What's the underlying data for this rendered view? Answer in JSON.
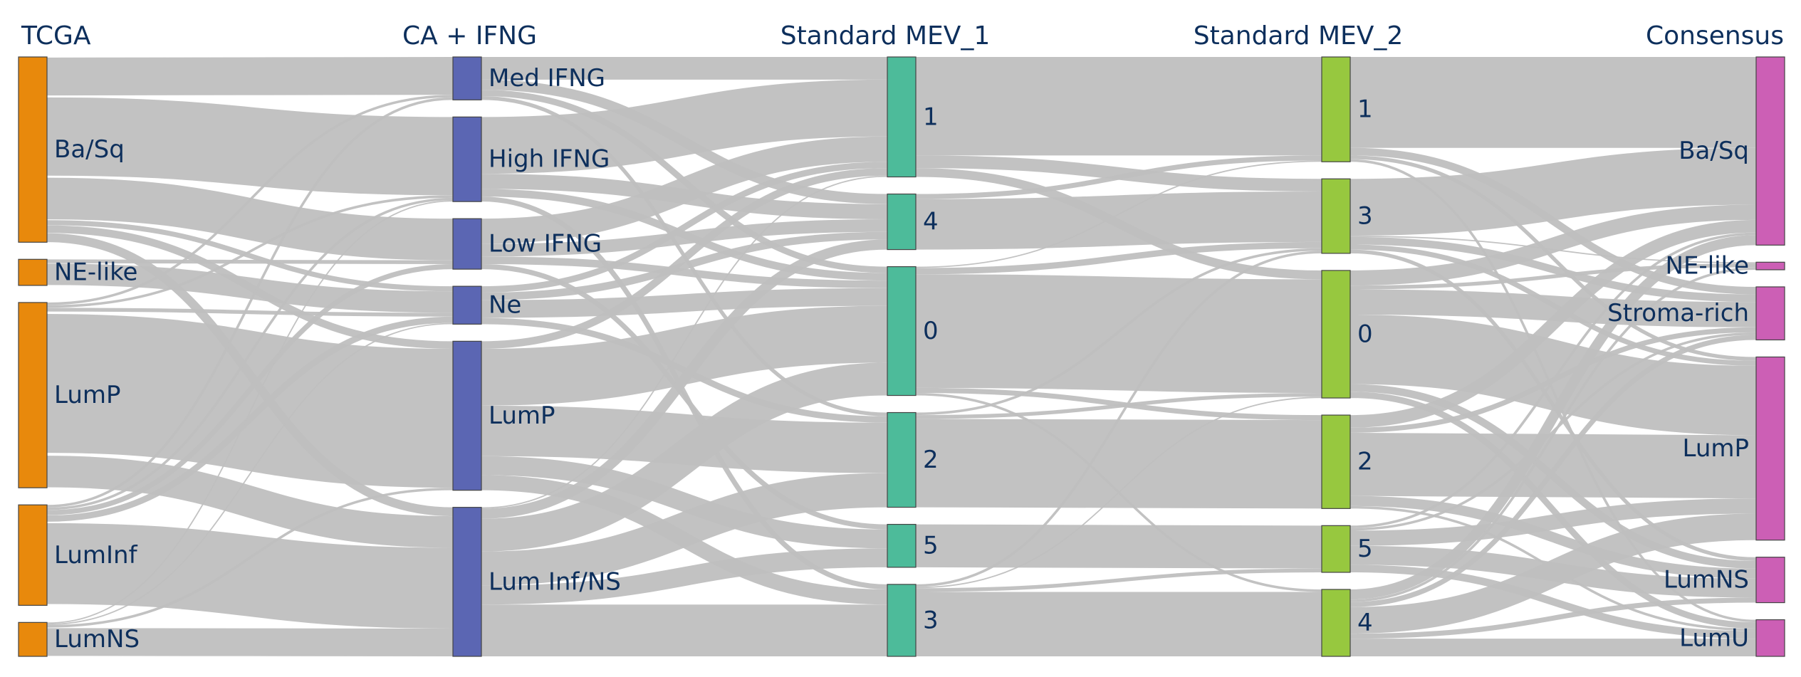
{
  "diagram": {
    "type": "sankey",
    "link_color": "#bfbfbf",
    "columns": [
      {
        "title": "TCGA",
        "color": "#e8890c",
        "nodes": [
          {
            "id": "t_basq",
            "label": "Ba/Sq",
            "value": 142
          },
          {
            "id": "t_ne",
            "label": "NE-like",
            "value": 20
          },
          {
            "id": "t_lump",
            "label": "LumP",
            "value": 142
          },
          {
            "id": "t_luminf",
            "label": "LumInf",
            "value": 77
          },
          {
            "id": "t_lumns",
            "label": "LumNS",
            "value": 26
          }
        ]
      },
      {
        "title": "CA + IFNG",
        "color": "#5b66b3",
        "nodes": [
          {
            "id": "c_med",
            "label": "Med IFNG",
            "value": 34
          },
          {
            "id": "c_high",
            "label": "High IFNG",
            "value": 67
          },
          {
            "id": "c_low",
            "label": "Low IFNG",
            "value": 40
          },
          {
            "id": "c_ne",
            "label": "Ne",
            "value": 30
          },
          {
            "id": "c_lump",
            "label": "LumP",
            "value": 118
          },
          {
            "id": "c_luminf",
            "label": "Lum Inf/NS",
            "value": 118
          }
        ]
      },
      {
        "title": "Standard MEV_1",
        "color": "#4dbb9a",
        "nodes": [
          {
            "id": "m1_1",
            "label": "1",
            "value": 95
          },
          {
            "id": "m1_4",
            "label": "4",
            "value": 44
          },
          {
            "id": "m1_0",
            "label": "0",
            "value": 102
          },
          {
            "id": "m1_2",
            "label": "2",
            "value": 75
          },
          {
            "id": "m1_5",
            "label": "5",
            "value": 34
          },
          {
            "id": "m1_3",
            "label": "3",
            "value": 57
          }
        ]
      },
      {
        "title": "Standard MEV_2",
        "color": "#97c83f",
        "nodes": [
          {
            "id": "m2_1",
            "label": "1",
            "value": 83
          },
          {
            "id": "m2_3",
            "label": "3",
            "value": 59
          },
          {
            "id": "m2_0",
            "label": "0",
            "value": 101
          },
          {
            "id": "m2_2",
            "label": "2",
            "value": 74
          },
          {
            "id": "m2_5",
            "label": "5",
            "value": 37
          },
          {
            "id": "m2_4",
            "label": "4",
            "value": 53
          }
        ]
      },
      {
        "title": "Consensus",
        "color": "#cc5fb5",
        "nodes": [
          {
            "id": "s_basq",
            "label": "Ba/Sq",
            "value": 149
          },
          {
            "id": "s_ne",
            "label": "NE-like",
            "value": 6
          },
          {
            "id": "s_stroma",
            "label": "Stroma-rich",
            "value": 42
          },
          {
            "id": "s_lump",
            "label": "LumP",
            "value": 145
          },
          {
            "id": "s_lumns",
            "label": "LumNS",
            "value": 36
          },
          {
            "id": "s_lumu",
            "label": "LumU",
            "value": 29
          }
        ]
      }
    ],
    "links": [
      {
        "source": "t_basq",
        "target": "c_med",
        "value": 30
      },
      {
        "source": "t_basq",
        "target": "c_high",
        "value": 62
      },
      {
        "source": "t_basq",
        "target": "c_low",
        "value": 33
      },
      {
        "source": "t_basq",
        "target": "c_ne",
        "value": 4
      },
      {
        "source": "t_basq",
        "target": "c_lump",
        "value": 6
      },
      {
        "source": "t_basq",
        "target": "c_luminf",
        "value": 7
      },
      {
        "source": "t_ne",
        "target": "c_ne",
        "value": 17
      },
      {
        "source": "t_ne",
        "target": "c_low",
        "value": 3
      },
      {
        "source": "t_lump",
        "target": "c_lump",
        "value": 110
      },
      {
        "source": "t_lump",
        "target": "c_luminf",
        "value": 25
      },
      {
        "source": "t_lump",
        "target": "c_med",
        "value": 2
      },
      {
        "source": "t_lump",
        "target": "c_high",
        "value": 2
      },
      {
        "source": "t_lump",
        "target": "c_ne",
        "value": 3
      },
      {
        "source": "t_luminf",
        "target": "c_luminf",
        "value": 64
      },
      {
        "source": "t_luminf",
        "target": "c_low",
        "value": 4
      },
      {
        "source": "t_luminf",
        "target": "c_ne",
        "value": 5
      },
      {
        "source": "t_luminf",
        "target": "c_high",
        "value": 2
      },
      {
        "source": "t_luminf",
        "target": "c_med",
        "value": 2
      },
      {
        "source": "t_lumns",
        "target": "c_luminf",
        "value": 22
      },
      {
        "source": "t_lumns",
        "target": "c_ne",
        "value": 1
      },
      {
        "source": "t_lumns",
        "target": "c_lump",
        "value": 2
      },
      {
        "source": "t_lumns",
        "target": "c_high",
        "value": 1
      },
      {
        "source": "c_med",
        "target": "m1_1",
        "value": 18
      },
      {
        "source": "c_med",
        "target": "m1_4",
        "value": 8
      },
      {
        "source": "c_med",
        "target": "m1_0",
        "value": 5
      },
      {
        "source": "c_med",
        "target": "m1_2",
        "value": 3
      },
      {
        "source": "c_high",
        "target": "m1_1",
        "value": 45
      },
      {
        "source": "c_high",
        "target": "m1_4",
        "value": 12
      },
      {
        "source": "c_high",
        "target": "m1_0",
        "value": 6
      },
      {
        "source": "c_high",
        "target": "m1_3",
        "value": 4
      },
      {
        "source": "c_low",
        "target": "m1_1",
        "value": 20
      },
      {
        "source": "c_low",
        "target": "m1_4",
        "value": 10
      },
      {
        "source": "c_low",
        "target": "m1_0",
        "value": 6
      },
      {
        "source": "c_low",
        "target": "m1_5",
        "value": 4
      },
      {
        "source": "c_ne",
        "target": "m1_0",
        "value": 14
      },
      {
        "source": "c_ne",
        "target": "m1_4",
        "value": 6
      },
      {
        "source": "c_ne",
        "target": "m1_1",
        "value": 5
      },
      {
        "source": "c_ne",
        "target": "m1_2",
        "value": 5
      },
      {
        "source": "c_lump",
        "target": "m1_0",
        "value": 45
      },
      {
        "source": "c_lump",
        "target": "m1_2",
        "value": 40
      },
      {
        "source": "c_lump",
        "target": "m1_5",
        "value": 15
      },
      {
        "source": "c_lump",
        "target": "m1_3",
        "value": 12
      },
      {
        "source": "c_lump",
        "target": "m1_1",
        "value": 6
      },
      {
        "source": "c_luminf",
        "target": "m1_0",
        "value": 26
      },
      {
        "source": "c_luminf",
        "target": "m1_2",
        "value": 27
      },
      {
        "source": "c_luminf",
        "target": "m1_3",
        "value": 41
      },
      {
        "source": "c_luminf",
        "target": "m1_5",
        "value": 15
      },
      {
        "source": "c_luminf",
        "target": "m1_4",
        "value": 8
      },
      {
        "source": "c_luminf",
        "target": "m1_1",
        "value": 1
      },
      {
        "source": "m1_1",
        "target": "m2_1",
        "value": 78
      },
      {
        "source": "m1_1",
        "target": "m2_3",
        "value": 10
      },
      {
        "source": "m1_1",
        "target": "m2_0",
        "value": 7
      },
      {
        "source": "m1_4",
        "target": "m2_3",
        "value": 40
      },
      {
        "source": "m1_4",
        "target": "m2_1",
        "value": 4
      },
      {
        "source": "m1_0",
        "target": "m2_0",
        "value": 90
      },
      {
        "source": "m1_0",
        "target": "m2_3",
        "value": 5
      },
      {
        "source": "m1_0",
        "target": "m2_2",
        "value": 4
      },
      {
        "source": "m1_0",
        "target": "m2_1",
        "value": 1
      },
      {
        "source": "m1_0",
        "target": "m2_4",
        "value": 2
      },
      {
        "source": "m1_2",
        "target": "m2_2",
        "value": 70
      },
      {
        "source": "m1_2",
        "target": "m2_3",
        "value": 2
      },
      {
        "source": "m1_2",
        "target": "m2_0",
        "value": 3
      },
      {
        "source": "m1_5",
        "target": "m2_5",
        "value": 34
      },
      {
        "source": "m1_3",
        "target": "m2_4",
        "value": 51
      },
      {
        "source": "m1_3",
        "target": "m2_0",
        "value": 1
      },
      {
        "source": "m1_3",
        "target": "m2_3",
        "value": 2
      },
      {
        "source": "m1_3",
        "target": "m2_5",
        "value": 3
      },
      {
        "source": "m2_1",
        "target": "s_basq",
        "value": 72
      },
      {
        "source": "m2_1",
        "target": "s_stroma",
        "value": 6
      },
      {
        "source": "m2_1",
        "target": "s_lump",
        "value": 3
      },
      {
        "source": "m2_1",
        "target": "s_lumu",
        "value": 2
      },
      {
        "source": "m2_3",
        "target": "s_basq",
        "value": 45
      },
      {
        "source": "m2_3",
        "target": "s_stroma",
        "value": 6
      },
      {
        "source": "m2_3",
        "target": "s_lump",
        "value": 4
      },
      {
        "source": "m2_3",
        "target": "s_ne",
        "value": 1
      },
      {
        "source": "m2_3",
        "target": "s_lumns",
        "value": 3
      },
      {
        "source": "m2_0",
        "target": "s_lump",
        "value": 55
      },
      {
        "source": "m2_0",
        "target": "s_stroma",
        "value": 20
      },
      {
        "source": "m2_0",
        "target": "s_basq",
        "value": 12
      },
      {
        "source": "m2_0",
        "target": "s_ne",
        "value": 3
      },
      {
        "source": "m2_0",
        "target": "s_lumns",
        "value": 6
      },
      {
        "source": "m2_0",
        "target": "s_lumu",
        "value": 5
      },
      {
        "source": "m2_2",
        "target": "s_lump",
        "value": 50
      },
      {
        "source": "m2_2",
        "target": "s_basq",
        "value": 10
      },
      {
        "source": "m2_2",
        "target": "s_lumns",
        "value": 8
      },
      {
        "source": "m2_2",
        "target": "s_stroma",
        "value": 4
      },
      {
        "source": "m2_2",
        "target": "s_lumu",
        "value": 2
      },
      {
        "source": "m2_5",
        "target": "s_lumns",
        "value": 15
      },
      {
        "source": "m2_5",
        "target": "s_lump",
        "value": 12
      },
      {
        "source": "m2_5",
        "target": "s_lumu",
        "value": 6
      },
      {
        "source": "m2_5",
        "target": "s_basq",
        "value": 2
      },
      {
        "source": "m2_5",
        "target": "s_stroma",
        "value": 2
      },
      {
        "source": "m2_4",
        "target": "s_lump",
        "value": 21
      },
      {
        "source": "m2_4",
        "target": "s_lumu",
        "value": 14
      },
      {
        "source": "m2_4",
        "target": "s_basq",
        "value": 8
      },
      {
        "source": "m2_4",
        "target": "s_lumns",
        "value": 4
      },
      {
        "source": "m2_4",
        "target": "s_stroma",
        "value": 4
      },
      {
        "source": "m2_4",
        "target": "s_ne",
        "value": 2
      }
    ]
  }
}
